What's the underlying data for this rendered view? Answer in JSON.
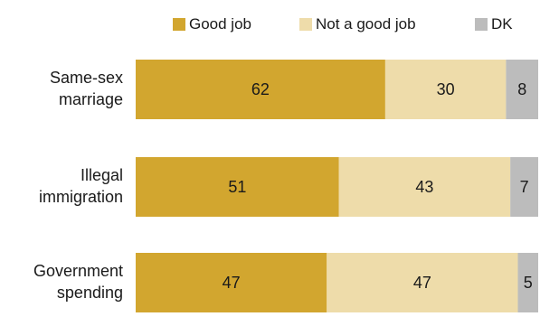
{
  "chart_data": {
    "type": "bar",
    "orientation": "horizontal",
    "stacked": true,
    "categories": [
      [
        "Same-sex",
        "marriage"
      ],
      [
        "Illegal",
        "immigration"
      ],
      [
        "Government",
        "spending"
      ]
    ],
    "series": [
      {
        "name": "Good job",
        "color": "#d2a62f",
        "values": [
          62,
          51,
          47
        ]
      },
      {
        "name": "Not a good job",
        "color": "#eedcaa",
        "values": [
          30,
          43,
          47
        ]
      },
      {
        "name": "DK",
        "color": "#bcbcbc",
        "values": [
          8,
          7,
          5
        ]
      }
    ],
    "data_labels": true,
    "legend_position": "top",
    "grid": false
  }
}
